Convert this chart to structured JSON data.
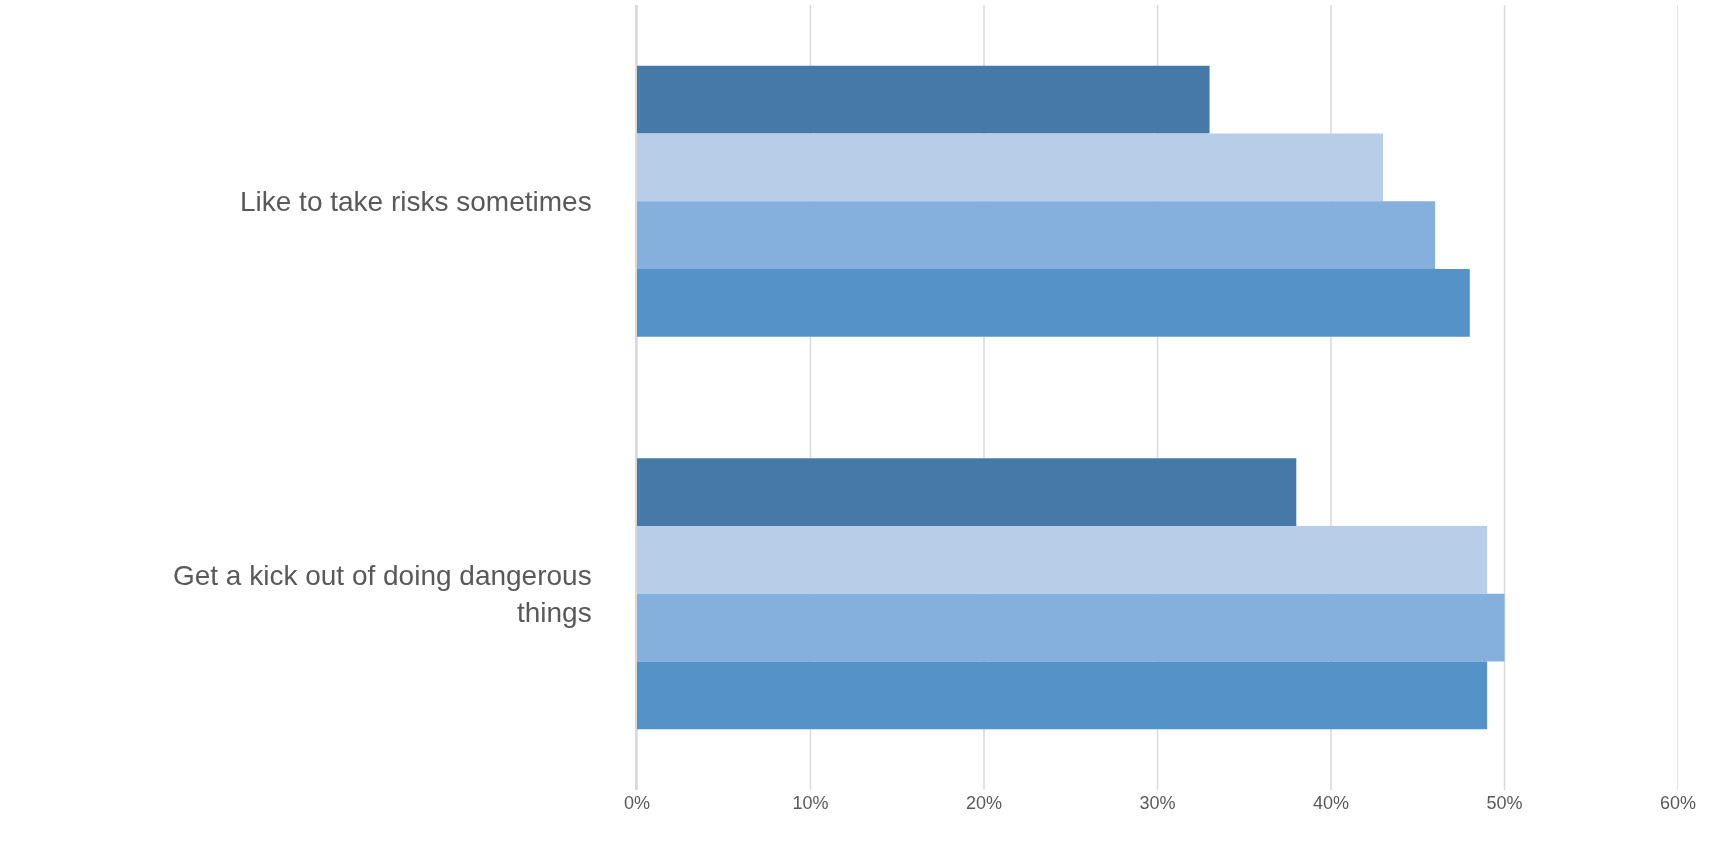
{
  "chart_data": {
    "type": "bar",
    "orientation": "horizontal",
    "categories": [
      "Like to take risks sometimes",
      "Get a kick out of doing dangerous things"
    ],
    "series": [
      {
        "color": "#4678a8",
        "values": [
          33,
          38
        ]
      },
      {
        "color": "#b8cde8",
        "values": [
          43,
          49
        ]
      },
      {
        "color": "#85afdc",
        "values": [
          46,
          50
        ]
      },
      {
        "color": "#5592c8",
        "values": [
          48,
          49
        ]
      }
    ],
    "xlim": [
      0,
      60
    ],
    "xticks": [
      {
        "value": 0,
        "label": "0%"
      },
      {
        "value": 10,
        "label": "10%"
      },
      {
        "value": 20,
        "label": "20%"
      },
      {
        "value": 30,
        "label": "30%"
      },
      {
        "value": 40,
        "label": "40%"
      },
      {
        "value": 50,
        "label": "50%"
      },
      {
        "value": 60,
        "label": "60%"
      }
    ],
    "grid": "x"
  }
}
